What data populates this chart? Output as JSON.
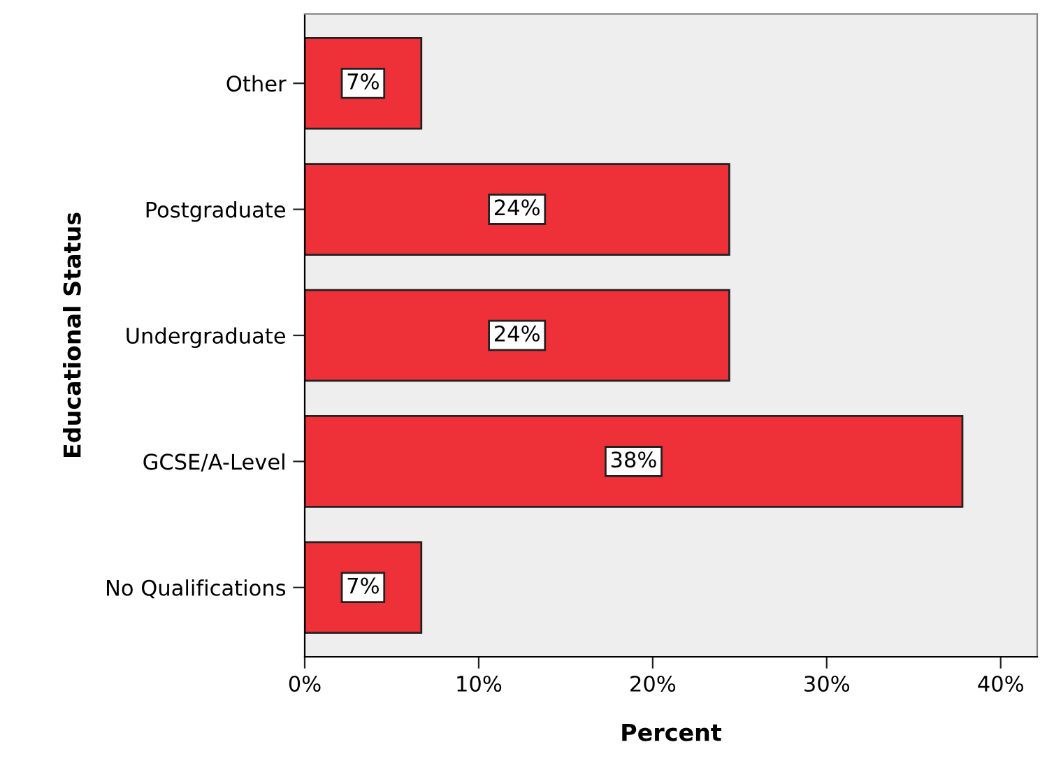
{
  "chart_data": {
    "type": "bar",
    "orientation": "horizontal",
    "xlabel": "Percent",
    "ylabel": "Educational Status",
    "categories": [
      "Other",
      "Postgraduate",
      "Undergraduate",
      "GCSE/A-Level",
      "No Qualifications"
    ],
    "values": [
      6.7,
      24.4,
      24.4,
      37.8,
      6.7
    ],
    "value_labels": [
      "7%",
      "24%",
      "24%",
      "38%",
      "7%"
    ],
    "color": "#ee3039",
    "xlim": [
      0,
      42.1
    ],
    "xticks": [
      {
        "value": 0,
        "label": "0%"
      },
      {
        "value": 10,
        "label": "10%"
      },
      {
        "value": 20,
        "label": "20%"
      },
      {
        "value": 30,
        "label": "30%"
      },
      {
        "value": 40,
        "label": "40%"
      }
    ],
    "grid": false,
    "legend": false
  }
}
